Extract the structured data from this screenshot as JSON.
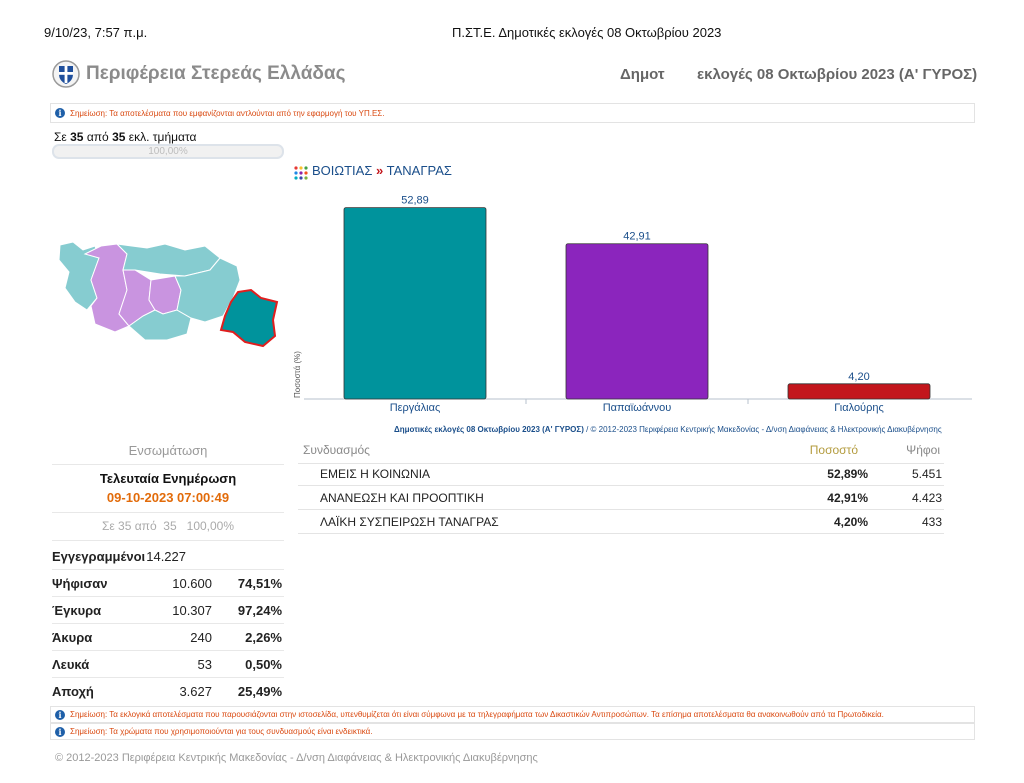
{
  "print_header": {
    "datetime": "9/10/23, 7:57 π.μ.",
    "title": "Π.ΣΤ.Ε. Δημοτικές εκλογές 08 Οκτωβρίου 2023"
  },
  "header": {
    "region": "Περιφέρεια Στερεάς Ελλάδας",
    "elections_part1": "Δημοτ",
    "elections_part2": "εκλογές 08 Οκτωβρίου 2023 (Α' ΓΥΡΟΣ)"
  },
  "notes": {
    "top": "Σημείωση: Τα αποτελέσματα που εμφανίζονται αντλούνται από την εφαρμογή του ΥΠ.ΕΣ.",
    "bottom1": "Σημείωση: Τα εκλογικά αποτελέσματα που παρουσιάζονται στην ιστοσελίδα, υπενθυμίζεται ότι είναι σύμφωνα με τα τηλεγραφήματα των Δικαστικών Αντιπροσώπων. Τα επίσημα αποτελέσματα θα ανακοινωθούν από τα Πρωτοδικεία.",
    "bottom2": "Σημείωση: Τα χρώματα που χρησιμοποιούνται για τους συνδυασμούς είναι ενδεικτικά."
  },
  "counted": {
    "prefix": "Σε",
    "counted": "35",
    "mid": "από",
    "total": "35",
    "suffix": "εκλ. τμήματα",
    "percent_label": "100,00%",
    "progress": 1.0
  },
  "breadcrumb": {
    "region": "ΒΟΙΩΤΙΑΣ",
    "sep": "»",
    "municipality": "ΤΑΝΑΓΡΑΣ"
  },
  "chart_data": {
    "type": "bar",
    "categories": [
      "Περγάλιας",
      "Παπαϊωάννου",
      "Γιαλούρης"
    ],
    "values": [
      52.89,
      42.91,
      4.2
    ],
    "value_labels": [
      "52,89",
      "42,91",
      "4,20"
    ],
    "colors": [
      "#00939c",
      "#8b25bd",
      "#c3161c"
    ],
    "ylabel": "Ποσοστά (%)",
    "ylim": [
      0,
      55
    ]
  },
  "chart_credit": {
    "bold": "Δημοτικές εκλογές 08 Οκτωβρίου 2023 (Α' ΓΥΡΟΣ)",
    "rest": " / © 2012-2023 Περιφέρεια Κεντρικής Μακεδονίας - Δ/νση Διαφάνειας & Ηλεκτρονικής Διακυβέρνησης"
  },
  "stats": {
    "heading": "Ενσωμάτωση",
    "last_update_label": "Τελευταία Ενημέρωση",
    "last_update_value": "09-10-2023 07:00:49",
    "summary": "Σε 35 από  35   100,00%",
    "rows": [
      {
        "label": "Εγγεγραμμένοι",
        "value": "14.227",
        "pct": ""
      },
      {
        "label": "Ψήφισαν",
        "value": "10.600",
        "pct": "74,51%"
      },
      {
        "label": "Έγκυρα",
        "value": "10.307",
        "pct": "97,24%"
      },
      {
        "label": "Άκυρα",
        "value": "240",
        "pct": "2,26%"
      },
      {
        "label": "Λευκά",
        "value": "53",
        "pct": "0,50%"
      },
      {
        "label": "Αποχή",
        "value": "3.627",
        "pct": "25,49%"
      }
    ]
  },
  "results": {
    "headers": {
      "party": "Συνδυασμός",
      "pct": "Ποσοστό",
      "votes": "Ψήφοι"
    },
    "rows": [
      {
        "party": "ΕΜΕΙΣ Η ΚΟΙΝΩΝΙΑ",
        "pct": "52,89%",
        "votes": "5.451"
      },
      {
        "party": "ΑΝΑΝΕΩΣΗ ΚΑΙ ΠΡΟΟΠΤΙΚΗ",
        "pct": "42,91%",
        "votes": "4.423"
      },
      {
        "party": "ΛΑΪΚΗ ΣΥΣΠΕΙΡΩΣΗ ΤΑΝΑΓΡΑΣ",
        "pct": "4,20%",
        "votes": "433"
      }
    ]
  },
  "footer": "© 2012-2023 Περιφέρεια Κεντρικής Μακεδονίας - Δ/νση Διαφάνειας & Ηλεκτρονικής Διακυβέρνησης",
  "colors": {
    "accent_link": "#1a4e8a",
    "update_orange": "#e26b0a",
    "note_red": "#d9480f",
    "map_selected": "#00939c",
    "map_purple": "#c994e0",
    "map_teal": "#86ccd0"
  },
  "icons": {
    "logo": "greek-coat-of-arms-icon",
    "info": "info-icon",
    "breadcrumb": "colored-dots-icon"
  }
}
